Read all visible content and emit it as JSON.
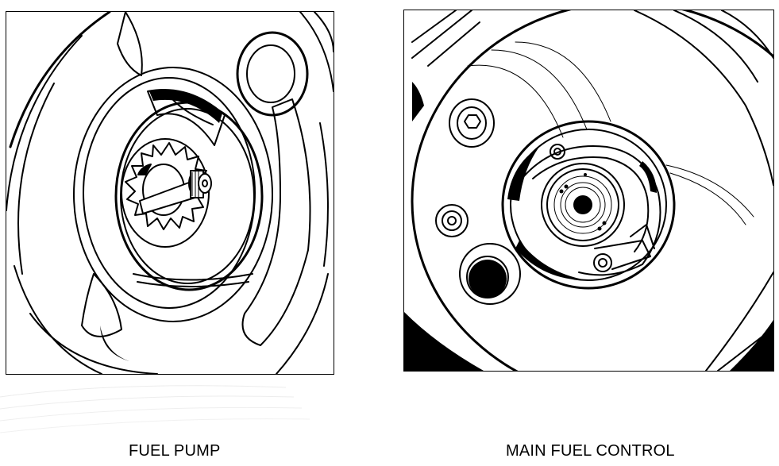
{
  "figures": [
    {
      "id": "left",
      "caption": "FUEL PUMP"
    },
    {
      "id": "right",
      "caption": "MAIN FUEL CONTROL"
    }
  ],
  "colors": {
    "ink": "#000000",
    "paper": "#ffffff",
    "streak": "#e9e9e9"
  }
}
